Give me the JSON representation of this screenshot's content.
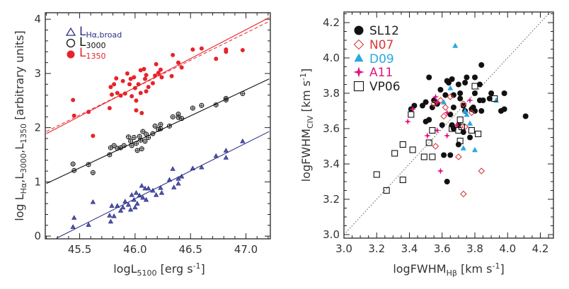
{
  "chart_data": [
    {
      "type": "scatter",
      "xlim": [
        45.19,
        47.22
      ],
      "ylim": [
        -0.05,
        4.12
      ],
      "xticks": [
        45.5,
        46.0,
        46.5,
        47.0
      ],
      "xtick_labels": [
        "45.5",
        "46.0",
        "46.5",
        "47.0"
      ],
      "yticks": [
        0,
        1,
        2,
        3,
        4
      ],
      "ytick_labels": [
        "0",
        "1",
        "2",
        "3",
        "4"
      ],
      "xlabel": {
        "main": "logL",
        "sub": "5100",
        "unit": " [erg s",
        "sup": "-1",
        "close": "]"
      },
      "ylabel": {
        "p1": "log L",
        "s1": "Hα",
        "p2": ",L",
        "s2": "3000",
        "p3": ",L",
        "s3": "1350",
        "unit": " [arbitrary units]"
      },
      "legend_position": "top-left",
      "grid": false,
      "series": [
        {
          "legend": {
            "main": "L",
            "sub": "Hα,broad"
          },
          "color": "#2b2f8a",
          "marker": "triangle",
          "points": [
            [
              45.44,
              0.17
            ],
            [
              45.45,
              0.34
            ],
            [
              45.58,
              0.21
            ],
            [
              45.62,
              0.63
            ],
            [
              45.77,
              0.38
            ],
            [
              45.78,
              0.27
            ],
            [
              45.79,
              0.56
            ],
            [
              45.81,
              0.37
            ],
            [
              45.84,
              0.56
            ],
            [
              45.87,
              0.47
            ],
            [
              45.89,
              0.53
            ],
            [
              45.91,
              0.64
            ],
            [
              45.94,
              0.58
            ],
            [
              45.96,
              0.49
            ],
            [
              45.97,
              0.76
            ],
            [
              45.99,
              0.67
            ],
            [
              46.0,
              0.53
            ],
            [
              46.01,
              0.8
            ],
            [
              46.02,
              0.6
            ],
            [
              46.04,
              0.75
            ],
            [
              46.06,
              0.93
            ],
            [
              46.07,
              0.71
            ],
            [
              46.09,
              0.88
            ],
            [
              46.1,
              0.67
            ],
            [
              46.12,
              0.88
            ],
            [
              46.16,
              0.84
            ],
            [
              46.19,
              0.76
            ],
            [
              46.23,
              0.89
            ],
            [
              46.24,
              0.8
            ],
            [
              46.31,
              1.04
            ],
            [
              46.34,
              1.24
            ],
            [
              46.35,
              0.9
            ],
            [
              46.39,
              0.97
            ],
            [
              46.39,
              1.06
            ],
            [
              46.42,
              1.1
            ],
            [
              46.52,
              1.25
            ],
            [
              46.6,
              1.27
            ],
            [
              46.73,
              1.48
            ],
            [
              46.82,
              1.58
            ],
            [
              46.82,
              1.45
            ],
            [
              46.97,
              1.75
            ]
          ],
          "fit": [
            [
              45.29,
              -0.04
            ],
            [
              47.21,
              1.93
            ]
          ]
        },
        {
          "legend": {
            "main": "L",
            "sub": "3000"
          },
          "color": "#111111",
          "marker": "open-circle",
          "points": [
            [
              45.44,
              1.33
            ],
            [
              45.45,
              1.21
            ],
            [
              45.58,
              1.32
            ],
            [
              45.62,
              1.17
            ],
            [
              45.77,
              1.5
            ],
            [
              45.78,
              1.63
            ],
            [
              45.81,
              1.67
            ],
            [
              45.84,
              1.62
            ],
            [
              45.87,
              1.63
            ],
            [
              45.9,
              1.67
            ],
            [
              45.94,
              1.83
            ],
            [
              45.96,
              1.75
            ],
            [
              45.97,
              1.67
            ],
            [
              45.99,
              1.82
            ],
            [
              46.01,
              1.71
            ],
            [
              46.02,
              1.58
            ],
            [
              46.04,
              1.84
            ],
            [
              46.05,
              1.77
            ],
            [
              46.06,
              1.61
            ],
            [
              46.07,
              1.93
            ],
            [
              46.09,
              1.75
            ],
            [
              46.1,
              1.88
            ],
            [
              46.12,
              1.82
            ],
            [
              46.16,
              1.89
            ],
            [
              46.18,
              2.03
            ],
            [
              46.21,
              1.97
            ],
            [
              46.23,
              2.06
            ],
            [
              46.23,
              1.98
            ],
            [
              46.31,
              2.03
            ],
            [
              46.34,
              2.2
            ],
            [
              46.39,
              2.25
            ],
            [
              46.39,
              2.19
            ],
            [
              46.42,
              2.17
            ],
            [
              46.52,
              2.36
            ],
            [
              46.6,
              2.41
            ],
            [
              46.73,
              2.42
            ],
            [
              46.82,
              2.54
            ],
            [
              46.82,
              2.51
            ],
            [
              46.97,
              2.63
            ]
          ],
          "fit": [
            [
              45.2,
              0.97
            ],
            [
              47.21,
              2.9
            ]
          ]
        },
        {
          "legend": {
            "main": "L",
            "sub": "1350"
          },
          "color": "#e8222a",
          "marker": "filled-circle",
          "points": [
            [
              45.44,
              2.51
            ],
            [
              45.45,
              2.22
            ],
            [
              45.58,
              2.29
            ],
            [
              45.62,
              1.85
            ],
            [
              45.77,
              2.36
            ],
            [
              45.78,
              2.75
            ],
            [
              45.81,
              2.8
            ],
            [
              45.79,
              2.61
            ],
            [
              45.83,
              2.91
            ],
            [
              45.84,
              2.64
            ],
            [
              45.87,
              2.59
            ],
            [
              45.89,
              2.86
            ],
            [
              45.91,
              2.63
            ],
            [
              45.93,
              3.0
            ],
            [
              45.95,
              2.8
            ],
            [
              45.96,
              2.9
            ],
            [
              45.99,
              2.93
            ],
            [
              45.97,
              2.58
            ],
            [
              46.0,
              2.73
            ],
            [
              46.01,
              2.5
            ],
            [
              46.01,
              2.32
            ],
            [
              46.03,
              2.8
            ],
            [
              46.05,
              3.06
            ],
            [
              46.05,
              2.64
            ],
            [
              46.06,
              2.27
            ],
            [
              46.08,
              3.08
            ],
            [
              46.09,
              2.9
            ],
            [
              46.1,
              2.67
            ],
            [
              46.1,
              2.97
            ],
            [
              46.12,
              2.75
            ],
            [
              46.16,
              2.82
            ],
            [
              46.18,
              2.96
            ],
            [
              46.19,
              3.17
            ],
            [
              46.21,
              3.01
            ],
            [
              46.23,
              3.07
            ],
            [
              46.24,
              2.93
            ],
            [
              46.34,
              3.34
            ],
            [
              46.33,
              2.95
            ],
            [
              46.39,
              3.2
            ],
            [
              46.42,
              3.11
            ],
            [
              46.52,
              3.44
            ],
            [
              46.6,
              3.46
            ],
            [
              46.73,
              3.27
            ],
            [
              46.82,
              3.44
            ],
            [
              46.82,
              3.4
            ],
            [
              46.97,
              3.43
            ]
          ],
          "fit": [
            [
              45.2,
              1.89
            ],
            [
              47.21,
              4.03
            ]
          ],
          "fit_dashed": [
            [
              45.2,
              1.93
            ],
            [
              47.21,
              3.96
            ]
          ]
        }
      ]
    },
    {
      "type": "scatter",
      "xlim": [
        3.0,
        4.28
      ],
      "ylim": [
        2.98,
        4.26
      ],
      "xticks": [
        3.0,
        3.2,
        3.4,
        3.6,
        3.8,
        4.0,
        4.2
      ],
      "xtick_labels": [
        "3.0",
        "3.2",
        "3.4",
        "3.6",
        "3.8",
        "4.0",
        "4.2"
      ],
      "yticks": [
        3.0,
        3.2,
        3.4,
        3.6,
        3.8,
        4.0,
        4.2
      ],
      "ytick_labels": [
        "3.0",
        "3.2",
        "3.4",
        "3.6",
        "3.8",
        "4.0",
        "4.2"
      ],
      "xlabel": {
        "main": "logFWHM",
        "sub": "Hβ",
        "unit": " [km s",
        "sup": "-1",
        "close": "]"
      },
      "ylabel": {
        "main": "logFWHM",
        "sub": "CIV",
        "unit": " [km s",
        "sup": "-1",
        "close": "]"
      },
      "reference_line": "y = x (dotted)",
      "legend_position": "top-left",
      "grid": false,
      "series": [
        {
          "name": "SL12",
          "color": "#111111",
          "marker": "filled-circle",
          "points": [
            [
              3.52,
              3.89
            ],
            [
              3.63,
              3.87
            ],
            [
              3.66,
              3.88
            ],
            [
              3.64,
              3.86
            ],
            [
              3.7,
              3.85
            ],
            [
              3.75,
              3.89
            ],
            [
              3.74,
              3.86
            ],
            [
              3.8,
              3.89
            ],
            [
              3.84,
              3.96
            ],
            [
              3.83,
              3.85
            ],
            [
              3.59,
              3.82
            ],
            [
              3.71,
              3.8
            ],
            [
              3.8,
              3.8
            ],
            [
              3.9,
              3.8
            ],
            [
              3.98,
              3.8
            ],
            [
              3.43,
              3.73
            ],
            [
              3.5,
              3.75
            ],
            [
              3.48,
              3.73
            ],
            [
              3.55,
              3.76
            ],
            [
              3.62,
              3.79
            ],
            [
              3.67,
              3.79
            ],
            [
              3.71,
              3.77
            ],
            [
              3.83,
              3.76
            ],
            [
              3.85,
              3.76
            ],
            [
              3.89,
              3.77
            ],
            [
              3.54,
              3.72
            ],
            [
              3.57,
              3.74
            ],
            [
              3.67,
              3.72
            ],
            [
              3.73,
              3.73
            ],
            [
              3.74,
              3.7
            ],
            [
              3.78,
              3.71
            ],
            [
              3.79,
              3.72
            ],
            [
              3.8,
              3.7
            ],
            [
              3.84,
              3.7
            ],
            [
              3.96,
              3.7
            ],
            [
              3.98,
              3.71
            ],
            [
              3.41,
              3.71
            ],
            [
              4.11,
              3.67
            ],
            [
              3.52,
              3.65
            ],
            [
              3.5,
              3.64
            ],
            [
              3.65,
              3.68
            ],
            [
              3.6,
              3.62
            ],
            [
              3.66,
              3.62
            ],
            [
              3.67,
              3.6
            ],
            [
              3.7,
              3.62
            ],
            [
              3.73,
              3.58
            ],
            [
              3.77,
              3.55
            ],
            [
              3.7,
              3.51
            ],
            [
              3.61,
              3.45
            ],
            [
              3.65,
              3.45
            ],
            [
              3.63,
              3.3
            ]
          ]
        },
        {
          "name": "N07",
          "color": "#d8393b",
          "marker": "open-diamond",
          "points": [
            [
              3.65,
              3.78
            ],
            [
              3.59,
              3.76
            ],
            [
              3.55,
              3.74
            ],
            [
              3.62,
              3.72
            ],
            [
              3.73,
              3.74
            ],
            [
              3.61,
              3.67
            ],
            [
              3.78,
              3.69
            ],
            [
              3.7,
              3.62
            ],
            [
              3.74,
              3.61
            ],
            [
              3.56,
              3.5
            ],
            [
              3.7,
              3.44
            ],
            [
              3.84,
              3.36
            ],
            [
              3.73,
              3.23
            ]
          ]
        },
        {
          "name": "D09",
          "color": "#27a8e0",
          "marker": "filled-triangle",
          "points": [
            [
              3.68,
              4.07
            ],
            [
              3.65,
              3.83
            ],
            [
              3.61,
              3.75
            ],
            [
              3.74,
              3.7
            ],
            [
              3.75,
              3.68
            ],
            [
              3.77,
              3.63
            ],
            [
              3.73,
              3.49
            ],
            [
              3.8,
              3.48
            ],
            [
              3.93,
              3.76
            ]
          ]
        },
        {
          "name": "A11",
          "color": "#e0157f",
          "marker": "star",
          "points": [
            [
              3.39,
              3.64
            ],
            [
              3.42,
              3.71
            ],
            [
              3.51,
              3.56
            ],
            [
              3.57,
              3.59
            ],
            [
              3.56,
              3.78
            ],
            [
              3.57,
              3.75
            ],
            [
              3.63,
              3.69
            ],
            [
              3.63,
              3.56
            ],
            [
              3.69,
              3.62
            ],
            [
              3.77,
              3.76
            ],
            [
              3.59,
              3.36
            ]
          ]
        },
        {
          "name": "VP06",
          "color": "#111111",
          "marker": "open-square",
          "points": [
            [
              3.2,
              3.34
            ],
            [
              3.26,
              3.25
            ],
            [
              3.31,
              3.46
            ],
            [
              3.36,
              3.51
            ],
            [
              3.36,
              3.31
            ],
            [
              3.41,
              3.68
            ],
            [
              3.42,
              3.48
            ],
            [
              3.49,
              3.44
            ],
            [
              3.52,
              3.52
            ],
            [
              3.54,
              3.59
            ],
            [
              3.54,
              3.44
            ],
            [
              3.66,
              3.6
            ],
            [
              3.7,
              3.59
            ],
            [
              3.71,
              3.65
            ],
            [
              3.71,
              3.53
            ],
            [
              3.72,
              3.61
            ],
            [
              3.78,
              3.59
            ],
            [
              3.8,
              3.84
            ],
            [
              3.82,
              3.57
            ],
            [
              3.92,
              3.77
            ]
          ]
        }
      ]
    }
  ]
}
